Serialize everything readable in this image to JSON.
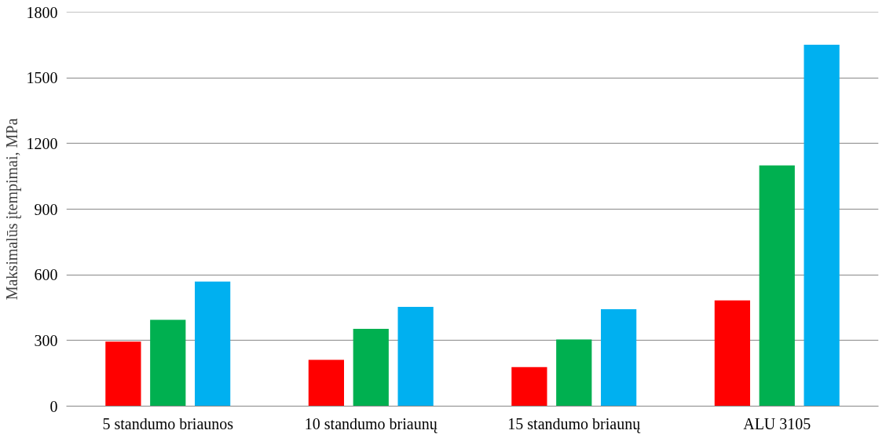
{
  "chart_data": {
    "type": "bar",
    "ylabel": "Maksimalūs įtempimai, MPa",
    "categories": [
      "5 standumo briaunos",
      "10 standumo briaunų",
      "15 standumo briaunų",
      "ALU 3105"
    ],
    "series": [
      {
        "color": "#ff0000",
        "values": [
          295,
          212,
          178,
          483
        ]
      },
      {
        "color": "#00b050",
        "values": [
          394,
          353,
          305,
          1100
        ]
      },
      {
        "color": "#00b0f0",
        "values": [
          569,
          454,
          443,
          1651
        ]
      }
    ],
    "ylim": [
      0,
      1800
    ],
    "yticks": [
      0,
      300,
      600,
      900,
      1200,
      1500,
      1800
    ],
    "grid": "y"
  }
}
